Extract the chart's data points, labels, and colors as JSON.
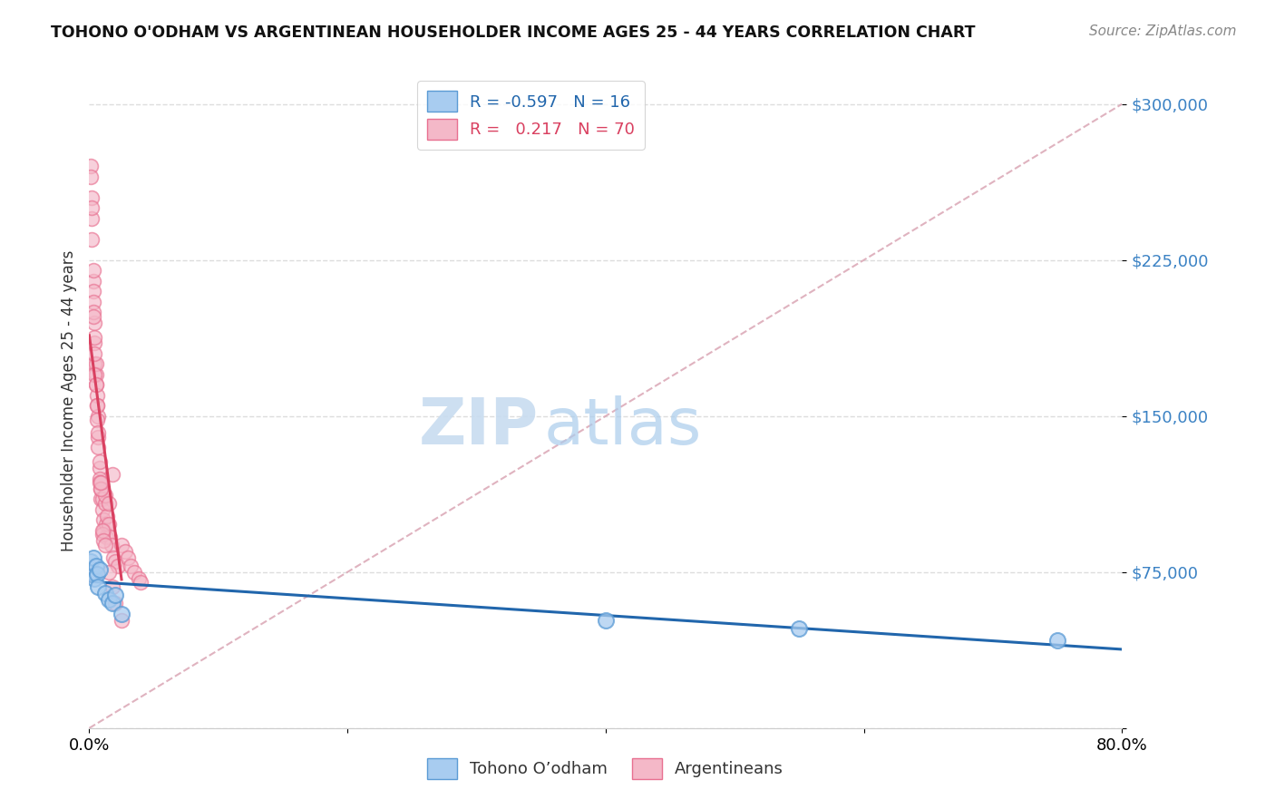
{
  "title": "TOHONO O'ODHAM VS ARGENTINEAN HOUSEHOLDER INCOME AGES 25 - 44 YEARS CORRELATION CHART",
  "source": "Source: ZipAtlas.com",
  "xlabel_tohono": "Tohono O’odham",
  "xlabel_argentinean": "Argentineans",
  "ylabel": "Householder Income Ages 25 - 44 years",
  "xlim": [
    0.0,
    0.8
  ],
  "ylim": [
    0,
    315000
  ],
  "yticks": [
    0,
    75000,
    150000,
    225000,
    300000
  ],
  "ytick_labels": [
    "",
    "$75,000",
    "$150,000",
    "$225,000",
    "$300,000"
  ],
  "xticks": [
    0.0,
    0.2,
    0.4,
    0.6,
    0.8
  ],
  "xtick_labels": [
    "0.0%",
    "",
    "",
    "",
    "80.0%"
  ],
  "r_tohono": -0.597,
  "n_tohono": 16,
  "r_argentinean": 0.217,
  "n_argentinean": 70,
  "color_tohono_fill": "#A8CCF0",
  "color_argentinean_fill": "#F4B8C8",
  "color_tohono_edge": "#5B9BD5",
  "color_argentinean_edge": "#E87090",
  "color_tohono_line": "#2166AC",
  "color_argentinean_line": "#D94060",
  "color_diagonal": "#D8A0B0",
  "tohono_x": [
    0.001,
    0.002,
    0.003,
    0.004,
    0.005,
    0.006,
    0.007,
    0.008,
    0.012,
    0.015,
    0.018,
    0.02,
    0.025,
    0.4,
    0.55,
    0.75
  ],
  "tohono_y": [
    80000,
    75000,
    82000,
    72000,
    78000,
    74000,
    68000,
    76000,
    65000,
    62000,
    60000,
    64000,
    55000,
    52000,
    48000,
    42000
  ],
  "argentinean_x": [
    0.001,
    0.001,
    0.002,
    0.002,
    0.002,
    0.003,
    0.003,
    0.003,
    0.004,
    0.004,
    0.004,
    0.005,
    0.005,
    0.005,
    0.006,
    0.006,
    0.007,
    0.007,
    0.007,
    0.008,
    0.008,
    0.009,
    0.009,
    0.01,
    0.01,
    0.011,
    0.011,
    0.012,
    0.012,
    0.013,
    0.013,
    0.014,
    0.015,
    0.015,
    0.016,
    0.017,
    0.018,
    0.019,
    0.02,
    0.022,
    0.025,
    0.028,
    0.03,
    0.032,
    0.035,
    0.038,
    0.04,
    0.008,
    0.009,
    0.01,
    0.002,
    0.003,
    0.003,
    0.004,
    0.004,
    0.005,
    0.006,
    0.006,
    0.007,
    0.008,
    0.009,
    0.01,
    0.011,
    0.012,
    0.015,
    0.018,
    0.02,
    0.025,
    0.003,
    0.004
  ],
  "argentinean_y": [
    270000,
    265000,
    255000,
    245000,
    235000,
    215000,
    210000,
    220000,
    195000,
    185000,
    175000,
    170000,
    175000,
    165000,
    160000,
    155000,
    150000,
    140000,
    135000,
    125000,
    120000,
    115000,
    110000,
    110000,
    105000,
    100000,
    95000,
    108000,
    112000,
    92000,
    98000,
    102000,
    108000,
    98000,
    92000,
    88000,
    122000,
    82000,
    80000,
    78000,
    88000,
    85000,
    82000,
    78000,
    75000,
    72000,
    70000,
    118000,
    115000,
    93000,
    250000,
    205000,
    200000,
    180000,
    170000,
    165000,
    155000,
    148000,
    142000,
    128000,
    118000,
    95000,
    90000,
    88000,
    75000,
    68000,
    60000,
    52000,
    198000,
    188000
  ],
  "background_color": "#FFFFFF",
  "grid_color": "#DDDDDD",
  "watermark_zip_color": "#D8E8F5",
  "watermark_atlas_color": "#C0D8F0"
}
